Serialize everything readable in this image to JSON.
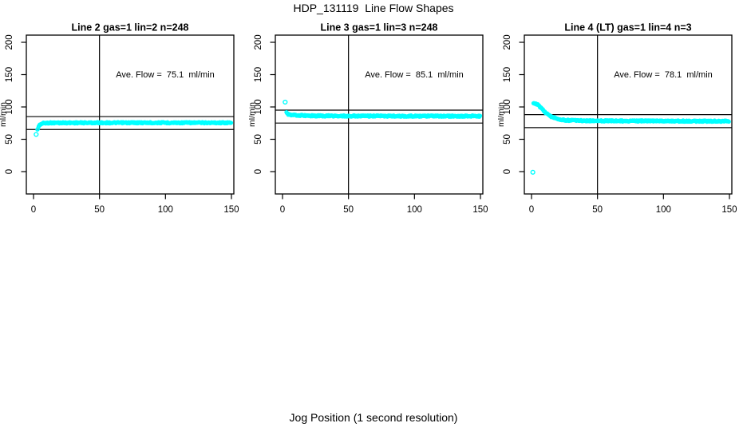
{
  "header": {
    "title": "HDP_131119  Line Flow Shapes"
  },
  "footer": {
    "xlabel": "Jog Position (1 second resolution)"
  },
  "colors": {
    "points": "#00ffff",
    "lines": "#000000",
    "background": "#ffffff"
  },
  "chart_data": [
    {
      "type": "scatter",
      "title": "Line 2 gas=1 lin=2 n=248",
      "annotation": "Ave. Flow =  75.1  ml/min",
      "ave_flow_ml_min": 75.1,
      "n": 248,
      "ylabel": "ml/min",
      "xticks": [
        0,
        50,
        100,
        150
      ],
      "yticks": [
        0,
        50,
        100,
        150,
        200
      ],
      "xlim": [
        -5,
        152
      ],
      "ylim": [
        -35,
        211
      ],
      "vline_x": 50,
      "hlines": [
        65.1,
        85.1
      ],
      "point_color": "#00ffff",
      "outlier_points": [
        [
          2,
          57.5
        ]
      ],
      "profile": [
        [
          3,
          64.5
        ],
        [
          4,
          70.5
        ],
        [
          5,
          72.8
        ],
        [
          6,
          74
        ],
        [
          8,
          75
        ],
        [
          12,
          75.4
        ],
        [
          30,
          75.5
        ],
        [
          70,
          75.6
        ],
        [
          120,
          75.6
        ],
        [
          148,
          75.6
        ],
        [
          150,
          74.8
        ]
      ]
    },
    {
      "type": "scatter",
      "title": "Line 3 gas=1 lin=3 n=248",
      "annotation": "Ave. Flow =  85.1  ml/min",
      "ave_flow_ml_min": 85.1,
      "n": 248,
      "ylabel": "ml/min",
      "xticks": [
        0,
        50,
        100,
        150
      ],
      "yticks": [
        0,
        50,
        100,
        150,
        200
      ],
      "xlim": [
        -5,
        152
      ],
      "ylim": [
        -35,
        211
      ],
      "vline_x": 50,
      "hlines": [
        75.1,
        95.1
      ],
      "point_color": "#00ffff",
      "outlier_points": [
        [
          2,
          107.5
        ]
      ],
      "profile": [
        [
          3,
          91.5
        ],
        [
          4,
          88.5
        ],
        [
          5,
          88
        ],
        [
          7,
          87.5
        ],
        [
          10,
          87.2
        ],
        [
          15,
          86.8
        ],
        [
          25,
          86.3
        ],
        [
          50,
          86
        ],
        [
          100,
          85.8
        ],
        [
          150,
          85.8
        ]
      ]
    },
    {
      "type": "scatter",
      "title": "Line 4 (LT) gas=1 lin=4 n=3",
      "annotation": "Ave. Flow =  78.1  ml/min",
      "ave_flow_ml_min": 78.1,
      "n": 3,
      "ylabel": "ml/min",
      "xticks": [
        0,
        50,
        100,
        150
      ],
      "yticks": [
        0,
        50,
        100,
        150,
        200
      ],
      "xlim": [
        -5,
        152
      ],
      "ylim": [
        -35,
        211
      ],
      "vline_x": 50,
      "hlines": [
        68.1,
        88.1
      ],
      "point_color": "#00ffff",
      "outlier_points": [
        [
          1,
          -1
        ]
      ],
      "profile": [
        [
          1.5,
          105.5
        ],
        [
          3,
          105.3
        ],
        [
          4,
          104.5
        ],
        [
          5,
          103
        ],
        [
          6,
          101
        ],
        [
          8,
          97
        ],
        [
          10,
          92.5
        ],
        [
          12,
          89
        ],
        [
          14,
          86.3
        ],
        [
          16,
          84.3
        ],
        [
          18,
          82.8
        ],
        [
          20,
          81.5
        ],
        [
          23,
          80.3
        ],
        [
          26,
          79.6
        ],
        [
          30,
          79.2
        ],
        [
          36,
          78.9
        ],
        [
          45,
          78.6
        ],
        [
          60,
          78.4
        ],
        [
          80,
          78.3
        ],
        [
          110,
          78.2
        ],
        [
          150,
          77.9
        ]
      ]
    }
  ]
}
